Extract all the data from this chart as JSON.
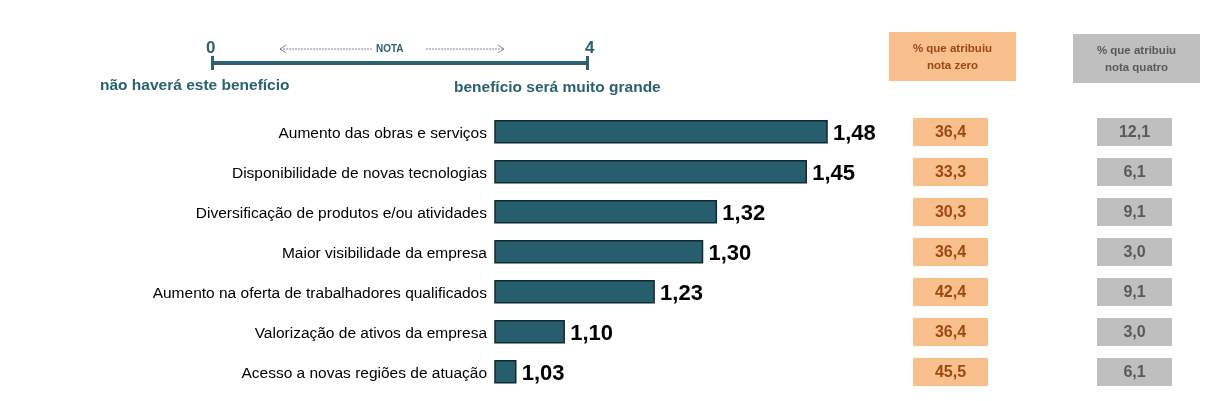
{
  "chart_data": {
    "type": "bar",
    "orientation": "horizontal",
    "categories": [
      "Aumento das obras e serviços",
      "Disponibilidade de novas tecnologias",
      "Diversificação de produtos e/ou atividades",
      "Maior visibilidade da empresa",
      "Aumento na oferta de trabalhadores qualificados",
      "Valorização de ativos da empresa",
      "Acesso a novas regiões de atuação"
    ],
    "values": [
      1.48,
      1.45,
      1.32,
      1.3,
      1.23,
      1.1,
      1.03
    ],
    "value_labels": [
      "1,48",
      "1,45",
      "1,32",
      "1,30",
      "1,23",
      "1,10",
      "1,03"
    ],
    "color": "#275e6d",
    "xlim": [
      1,
      1.48
    ],
    "tick_labels": "y",
    "grid": false,
    "legend": false,
    "annotations": [
      "0",
      "NOTA",
      "4",
      "não haverá este benefício",
      "benefício será muito grande",
      "% que atribuiu nota zero",
      "% que atribuiu nota quatro",
      "36,4",
      "33,3",
      "30,3",
      "36,4",
      "42,4",
      "36,4",
      "45,5",
      "12,1",
      "6,1",
      "9,1",
      "3,0",
      "9,1",
      "3,0",
      "6,1"
    ]
  }
}
